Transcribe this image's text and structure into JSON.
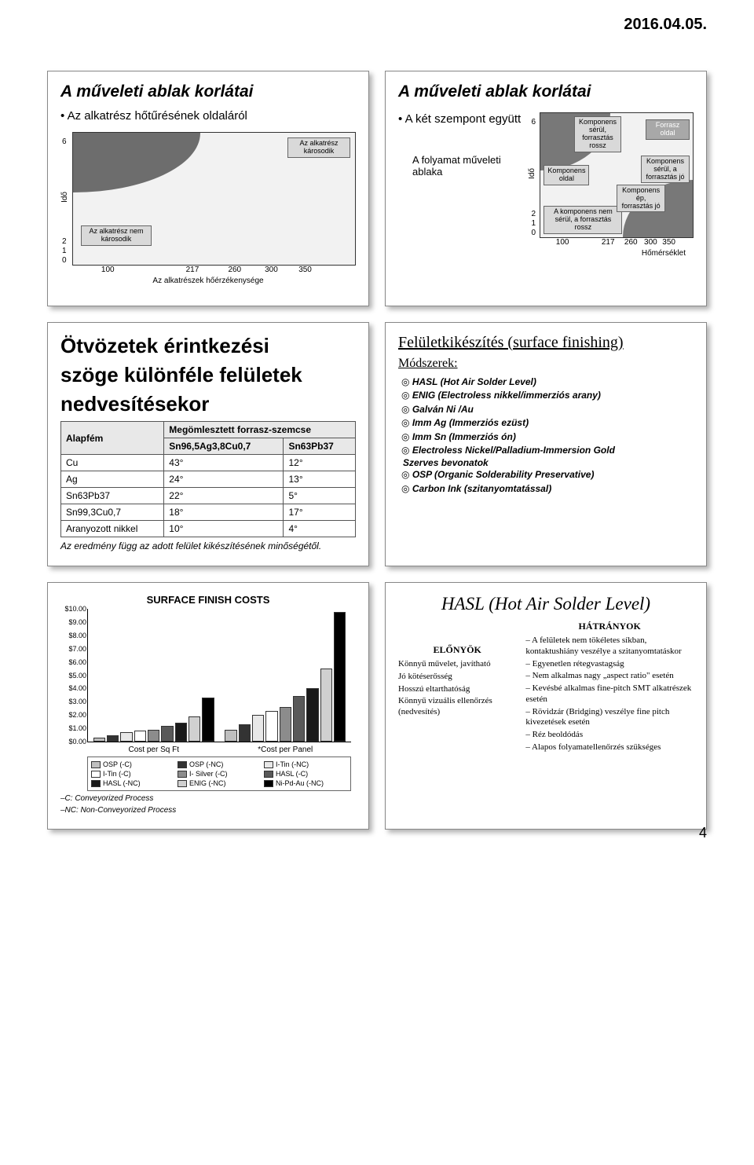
{
  "header_date": "2016.04.05.",
  "page_number": "4",
  "panel1": {
    "title": "A műveleti ablak korlátai",
    "bullet": "Az alkatrész hőtűrésének oldaláról",
    "chart": {
      "y_axis": "Idő",
      "x_axis": "Az alkatrészek hőérzékenysége",
      "x_ticks": [
        "100",
        "217",
        "260",
        "300",
        "350"
      ],
      "y_ticks": [
        "2",
        "1",
        "0",
        "6"
      ],
      "region_damage": "Az alkatrész károsodik",
      "region_ok": "Az alkatrész nem károsodik"
    }
  },
  "panel2": {
    "title": "A műveleti ablak korlátai",
    "bullet": "A két szempont együtt",
    "note": "A folyamat műveleti ablaka",
    "chart": {
      "y_axis": "Idő",
      "x_axis": "Hőmérséklet",
      "x_ticks": [
        "100",
        "217",
        "260",
        "300",
        "350"
      ],
      "y_ticks": [
        "2",
        "1",
        "0",
        "6"
      ],
      "lbl_tl": "Komponens sérül, forrasztás rossz",
      "lbl_tr": "Forrasz oldal",
      "lbl_ml": "Komponens oldal",
      "lbl_mr": "Komponens sérül, a forrasztás jó",
      "lbl_bl": "A komponens nem sérül, a forrasztás rossz",
      "lbl_br": "Komponens ép, forrasztás jó"
    }
  },
  "panel3": {
    "title_l1": "Ötvözetek érintkezési",
    "title_l2": "szöge különféle felületek",
    "title_l3": "nedvesítésekor",
    "table": {
      "columns": [
        "Alapfém",
        "Megömlesztett forrasz-szemcse"
      ],
      "subcols": [
        "",
        "Sn96,5Ag3,8Cu0,7",
        "Sn63Pb37"
      ],
      "rows": [
        [
          "Cu",
          "43°",
          "12°"
        ],
        [
          "Ag",
          "24°",
          "13°"
        ],
        [
          "Sn63Pb37",
          "22°",
          "5°"
        ],
        [
          "Sn99,3Cu0,7",
          "18°",
          "17°"
        ],
        [
          "Aranyozott nikkel",
          "10°",
          "4°"
        ]
      ]
    },
    "caption": "Az eredmény függ az adott felület kikészítésének minőségétől."
  },
  "panel4": {
    "title": "Felületkikészítés (surface finishing)",
    "section": "Módszerek:",
    "items": [
      "HASL (Hot Air Solder Level)",
      "ENIG (Electroless nikkel/immerziós arany)",
      "Galván Ni /Au",
      "Imm Ag (Immerziós ezüst)",
      "Imm Sn (Immerziós ón)",
      "Electroless Nickel/Palladium-Immersion Gold"
    ],
    "subhead": "Szerves bevonatok",
    "subitems": [
      "OSP (Organic Solderability Preservative)",
      "Carbon Ink (szitanyomtatással)"
    ]
  },
  "panel5": {
    "title": "SURFACE FINISH COSTS",
    "y_ticks": [
      "$10.00",
      "$9.00",
      "$8.00",
      "$7.00",
      "$6.00",
      "$5.00",
      "$4.00",
      "$3.00",
      "$2.00",
      "$1.00",
      "$0.00"
    ],
    "x_labels": [
      "Cost per Sq Ft",
      "*Cost per Panel"
    ],
    "series": [
      {
        "name": "OSP (-C)",
        "color": "#bfbfbf",
        "vals": [
          0.3,
          0.9
        ]
      },
      {
        "name": "OSP (-NC)",
        "color": "#333333",
        "vals": [
          0.5,
          1.3
        ]
      },
      {
        "name": "I-Tin (-NC)",
        "color": "#e8e8e8",
        "vals": [
          0.7,
          2.0
        ]
      },
      {
        "name": "I-Tin (-C)",
        "color": "#ffffff",
        "vals": [
          0.8,
          2.3
        ]
      },
      {
        "name": "I- Silver (-C)",
        "color": "#8c8c8c",
        "vals": [
          0.9,
          2.6
        ]
      },
      {
        "name": "HASL (-C)",
        "color": "#595959",
        "vals": [
          1.2,
          3.4
        ]
      },
      {
        "name": "HASL (-NC)",
        "color": "#1a1a1a",
        "vals": [
          1.4,
          4.0
        ]
      },
      {
        "name": "ENIG (-NC)",
        "color": "#d0d0d0",
        "vals": [
          1.9,
          5.5
        ]
      },
      {
        "name": "Ni-Pd-Au (-NC)",
        "color": "#000000",
        "vals": [
          3.3,
          9.7
        ]
      }
    ],
    "y_max": 10,
    "foot1": "–C: Conveyorized Process",
    "foot2": "–NC: Non-Conveyorized Process"
  },
  "panel6": {
    "title": "HASL (Hot Air Solder Level)",
    "adv_h": "ELŐNYÖK",
    "dis_h": "HÁTRÁNYOK",
    "adv": [
      "Könnyű művelet, javítható",
      "Jó kötéserősség",
      "Hosszú eltarthatóság",
      "Könnyű vizuális ellenőrzés (nedvesítés)"
    ],
    "dis": [
      "A felületek nem tökéletes síkban, kontaktushiány veszélye a szitanyomtatáskor",
      "Egyenetlen rétegvastagság",
      "Nem alkalmas nagy „aspect ratio\" esetén",
      "Kevésbé alkalmas fine-pitch SMT alkatrészek esetén",
      "Rövidzár (Bridging) veszélye fine pitch kivezetések esetén",
      "Réz beoldódás",
      "Alapos folyamatellenőrzés szükséges"
    ]
  }
}
